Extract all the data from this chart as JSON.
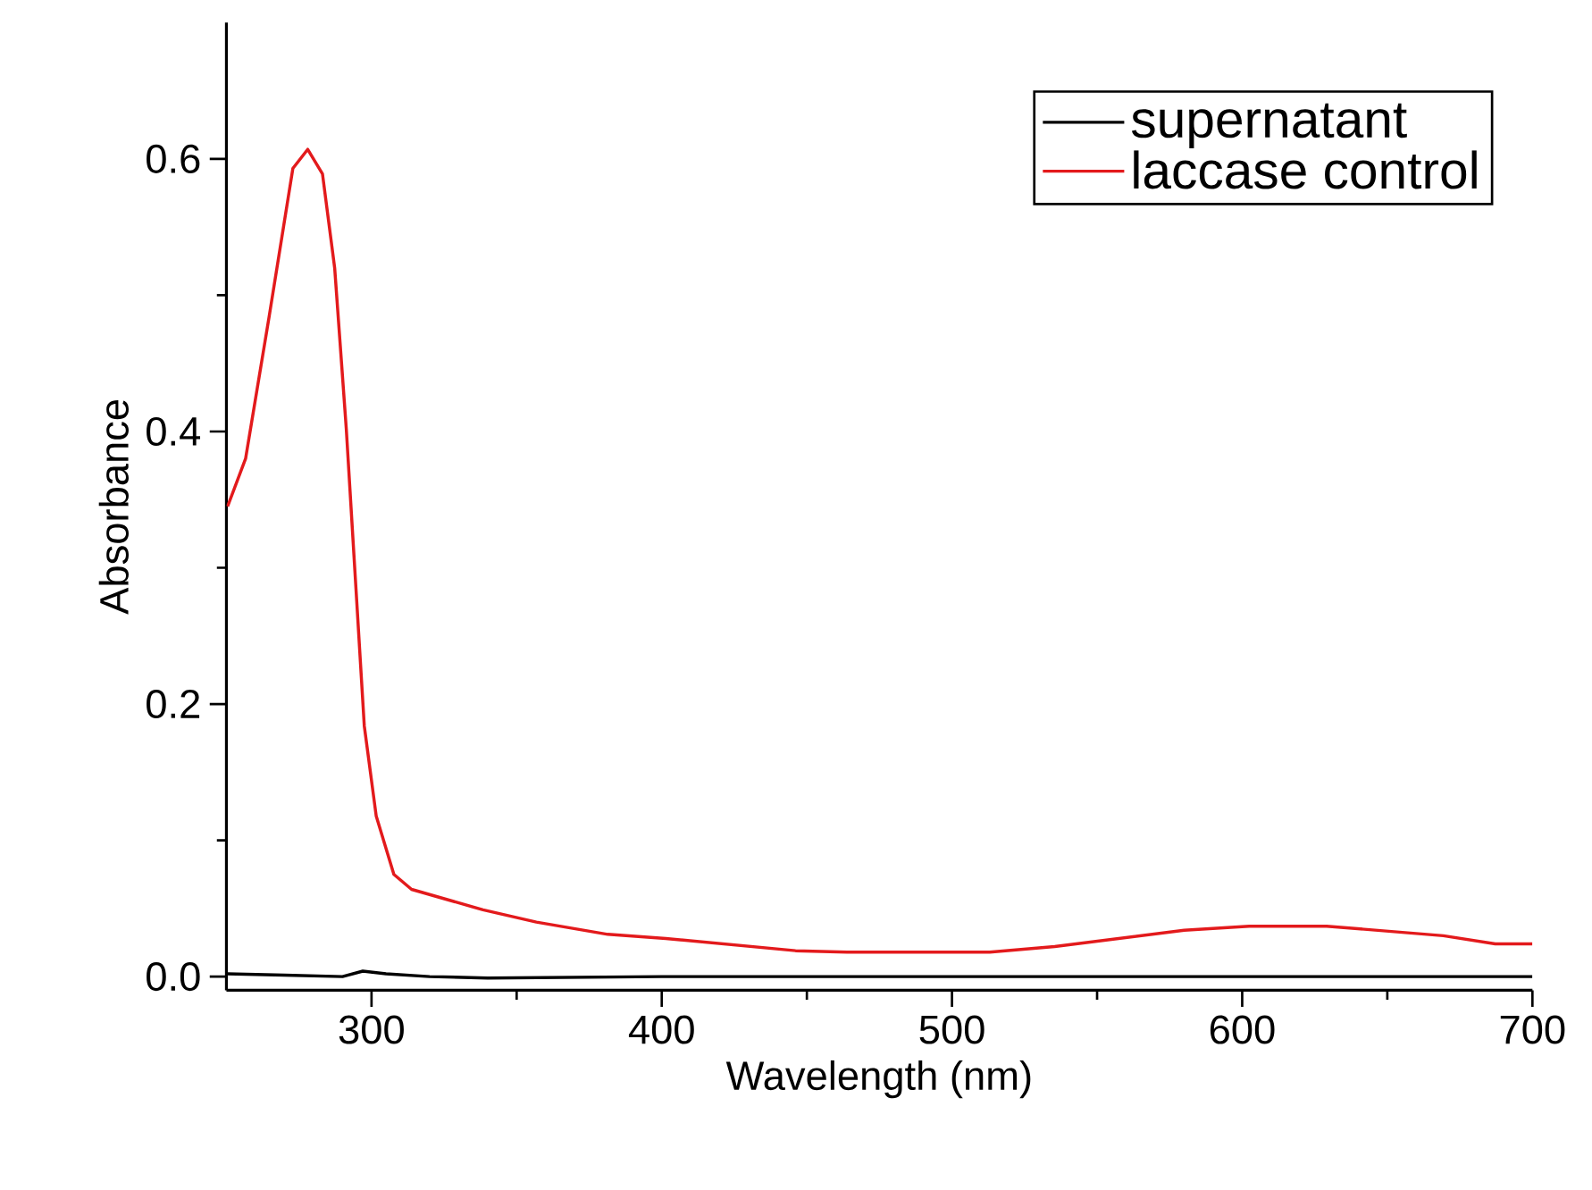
{
  "chart_data": {
    "type": "line",
    "xlabel": "Wavelength (nm)",
    "ylabel": "Absorbance",
    "xlim": [
      250,
      700
    ],
    "ylim": [
      -0.01,
      0.7
    ],
    "xticks": [
      300,
      400,
      500,
      600,
      700
    ],
    "yticks": [
      {
        "value": 0,
        "label": "0.0"
      },
      {
        "value": 0.2,
        "label": "0.2"
      },
      {
        "value": 0.4,
        "label": "0.4"
      },
      {
        "value": 0.6,
        "label": "0.6"
      }
    ],
    "legend": "top right",
    "grid": false,
    "marker": "none",
    "line_style": "solid",
    "series": [
      {
        "name": "supernatant",
        "color": "#000000",
        "x": [
          250,
          270,
          290,
          297,
          305,
          320,
          340,
          400,
          500,
          600,
          700
        ],
        "values": [
          0.002,
          0.001,
          0.0,
          0.004,
          0.002,
          0.0,
          -0.001,
          0.0,
          0.0,
          0.0,
          0.0
        ]
      },
      {
        "name": "laccase control",
        "color": "#e31a1c",
        "x": [
          250.4,
          256.6,
          264.7,
          272.9,
          278,
          283.1,
          287.3,
          291.3,
          294.4,
          297.5,
          301.6,
          307.7,
          313.8,
          338.4,
          356.8,
          381.4,
          401.4,
          446.1,
          463.9,
          513,
          535.4,
          580,
          602.4,
          629.1,
          669.3,
          687.2,
          700
        ],
        "values": [
          0.345,
          0.38,
          0.484,
          0.593,
          0.607,
          0.589,
          0.52,
          0.402,
          0.293,
          0.184,
          0.118,
          0.075,
          0.064,
          0.049,
          0.04,
          0.031,
          0.028,
          0.019,
          0.018,
          0.018,
          0.022,
          0.034,
          0.037,
          0.037,
          0.03,
          0.024,
          0.024
        ]
      }
    ]
  }
}
